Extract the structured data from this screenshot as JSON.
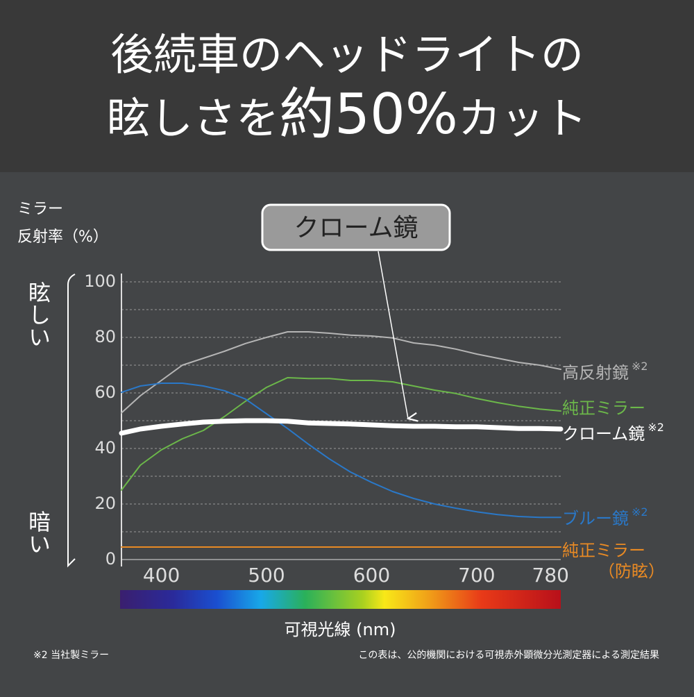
{
  "chart_data": {
    "type": "line",
    "title_line1": "後続車のヘッドライトの",
    "title_line2_parts": [
      "眩しさを",
      "約50%",
      "カット"
    ],
    "y_axis_label": [
      "ミラー",
      "反射率（%）"
    ],
    "side_labels": {
      "top": "眩しい",
      "bottom": "暗い"
    },
    "callout": "クローム鏡",
    "x_axis_label": "可視光線 (nm)",
    "footnote_left": "※2 当社製ミラー",
    "footnote_right": "この表は、公的機関における可視赤外顕微分光測定器による測定結果",
    "xlim": [
      362,
      780
    ],
    "xticks": [
      400,
      500,
      600,
      700,
      780
    ],
    "ylim": [
      0,
      100
    ],
    "yticks": [
      0,
      20,
      40,
      60,
      80,
      100
    ],
    "minor_yticks": [
      10,
      30,
      50,
      70,
      90
    ],
    "grid": true,
    "x": [
      362,
      380,
      400,
      420,
      440,
      460,
      480,
      500,
      520,
      540,
      560,
      580,
      600,
      620,
      640,
      660,
      680,
      700,
      720,
      740,
      760,
      780
    ],
    "series": [
      {
        "name": "高反射鏡",
        "note": "※2",
        "color": "#b5b5b5",
        "width": 2,
        "values": [
          52.8,
          59,
          64.5,
          70,
          72.5,
          75,
          77.8,
          80,
          82,
          82,
          81.5,
          80.8,
          80.5,
          79.8,
          78,
          77.2,
          75.8,
          74,
          72.5,
          71,
          70,
          68.5
        ]
      },
      {
        "name": "純正ミラー",
        "color": "#6cb84a",
        "width": 2,
        "values": [
          25,
          34,
          39.5,
          43.5,
          46.5,
          51.5,
          57,
          62,
          65.5,
          65.2,
          65.2,
          64.5,
          64.5,
          64,
          62.5,
          61,
          59.8,
          58,
          56.5,
          55.2,
          54.2,
          53.5
        ]
      },
      {
        "name": "クローム鏡",
        "note": "※2",
        "color": "#ffffff",
        "width": 7,
        "values": [
          45.5,
          47,
          48,
          48.8,
          49.5,
          49.8,
          50,
          50,
          49.8,
          49.2,
          49,
          48.8,
          48.5,
          48.2,
          48,
          48,
          47.8,
          47.8,
          47.5,
          47.2,
          47.2,
          47
        ]
      },
      {
        "name": "ブルー鏡",
        "note": "※2",
        "color": "#2a78c8",
        "width": 2,
        "values": [
          60.2,
          62.5,
          63.5,
          63.5,
          62.5,
          60.8,
          57.8,
          52.5,
          47.2,
          41.5,
          36.2,
          31.5,
          27.8,
          24.5,
          22,
          20,
          18.5,
          17.2,
          16.2,
          15.5,
          15.2,
          15.2
        ]
      },
      {
        "name": "純正ミラー",
        "sublabel": "（防眩）",
        "color": "#e98a24",
        "width": 2,
        "values": [
          4.5,
          4.5,
          4.5,
          4.5,
          4.5,
          4.5,
          4.5,
          4.5,
          4.5,
          4.5,
          4.5,
          4.5,
          4.5,
          4.5,
          4.5,
          4.5,
          4.5,
          4.5,
          4.5,
          4.5,
          4.5,
          4.5
        ]
      }
    ]
  }
}
